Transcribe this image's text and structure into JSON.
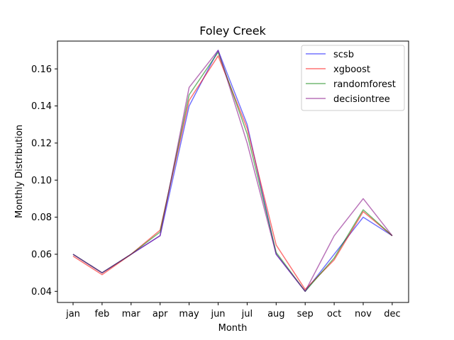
{
  "chart_data": {
    "type": "line",
    "title": "Foley Creek",
    "xlabel": "Month",
    "ylabel": "Monthly Distribution",
    "categories": [
      "jan",
      "feb",
      "mar",
      "apr",
      "may",
      "jun",
      "jul",
      "aug",
      "sep",
      "oct",
      "nov",
      "dec"
    ],
    "ylim": [
      0.034,
      0.175
    ],
    "yticks": [
      0.04,
      0.06,
      0.08,
      0.1,
      0.12,
      0.14,
      0.16
    ],
    "ytick_labels": [
      "0.04",
      "0.06",
      "0.08",
      "0.10",
      "0.12",
      "0.14",
      "0.16"
    ],
    "legend_position": "top-right",
    "grid": false,
    "series": [
      {
        "name": "scsb",
        "color": "#0000ff",
        "values": [
          0.06,
          0.05,
          0.06,
          0.07,
          0.14,
          0.17,
          0.13,
          0.06,
          0.04,
          0.06,
          0.08,
          0.07
        ]
      },
      {
        "name": "xgboost",
        "color": "#ff0000",
        "values": [
          0.059,
          0.049,
          0.06,
          0.073,
          0.143,
          0.167,
          0.128,
          0.065,
          0.041,
          0.057,
          0.083,
          0.07
        ]
      },
      {
        "name": "randomforest",
        "color": "#008000",
        "values": [
          0.06,
          0.05,
          0.06,
          0.072,
          0.146,
          0.169,
          0.125,
          0.061,
          0.04,
          0.058,
          0.084,
          0.07
        ]
      },
      {
        "name": "decisiontree",
        "color": "#800080",
        "values": [
          0.06,
          0.05,
          0.06,
          0.07,
          0.15,
          0.17,
          0.12,
          0.06,
          0.04,
          0.07,
          0.09,
          0.07
        ]
      }
    ]
  }
}
